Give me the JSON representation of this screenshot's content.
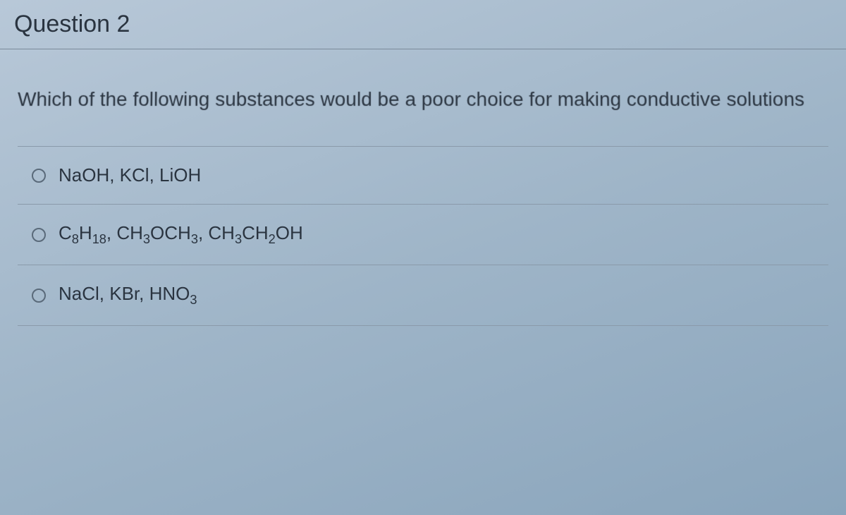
{
  "question": {
    "header": "Question 2",
    "prompt": "Which of the following substances would be a poor choice for making conductive solutions",
    "options": [
      {
        "html": "NaOH, KCl, LiOH",
        "selected": false
      },
      {
        "html": "C<sub>8</sub>H<sub>18</sub>, CH<sub>3</sub>OCH<sub>3</sub>, CH<sub>3</sub>CH<sub>2</sub>OH",
        "selected": false
      },
      {
        "html": "NaCl, KBr, HNO<sub>3</sub>",
        "selected": false
      }
    ]
  },
  "styles": {
    "background_gradient_start": "#b8c8d8",
    "background_gradient_mid": "#9fb5c8",
    "background_gradient_end": "#8aa5bc",
    "border_color": "#8a9aaa",
    "text_color": "#2a3440",
    "radio_border_color": "#5a6a7a",
    "title_fontsize": 34,
    "prompt_fontsize": 28,
    "option_fontsize": 26
  }
}
